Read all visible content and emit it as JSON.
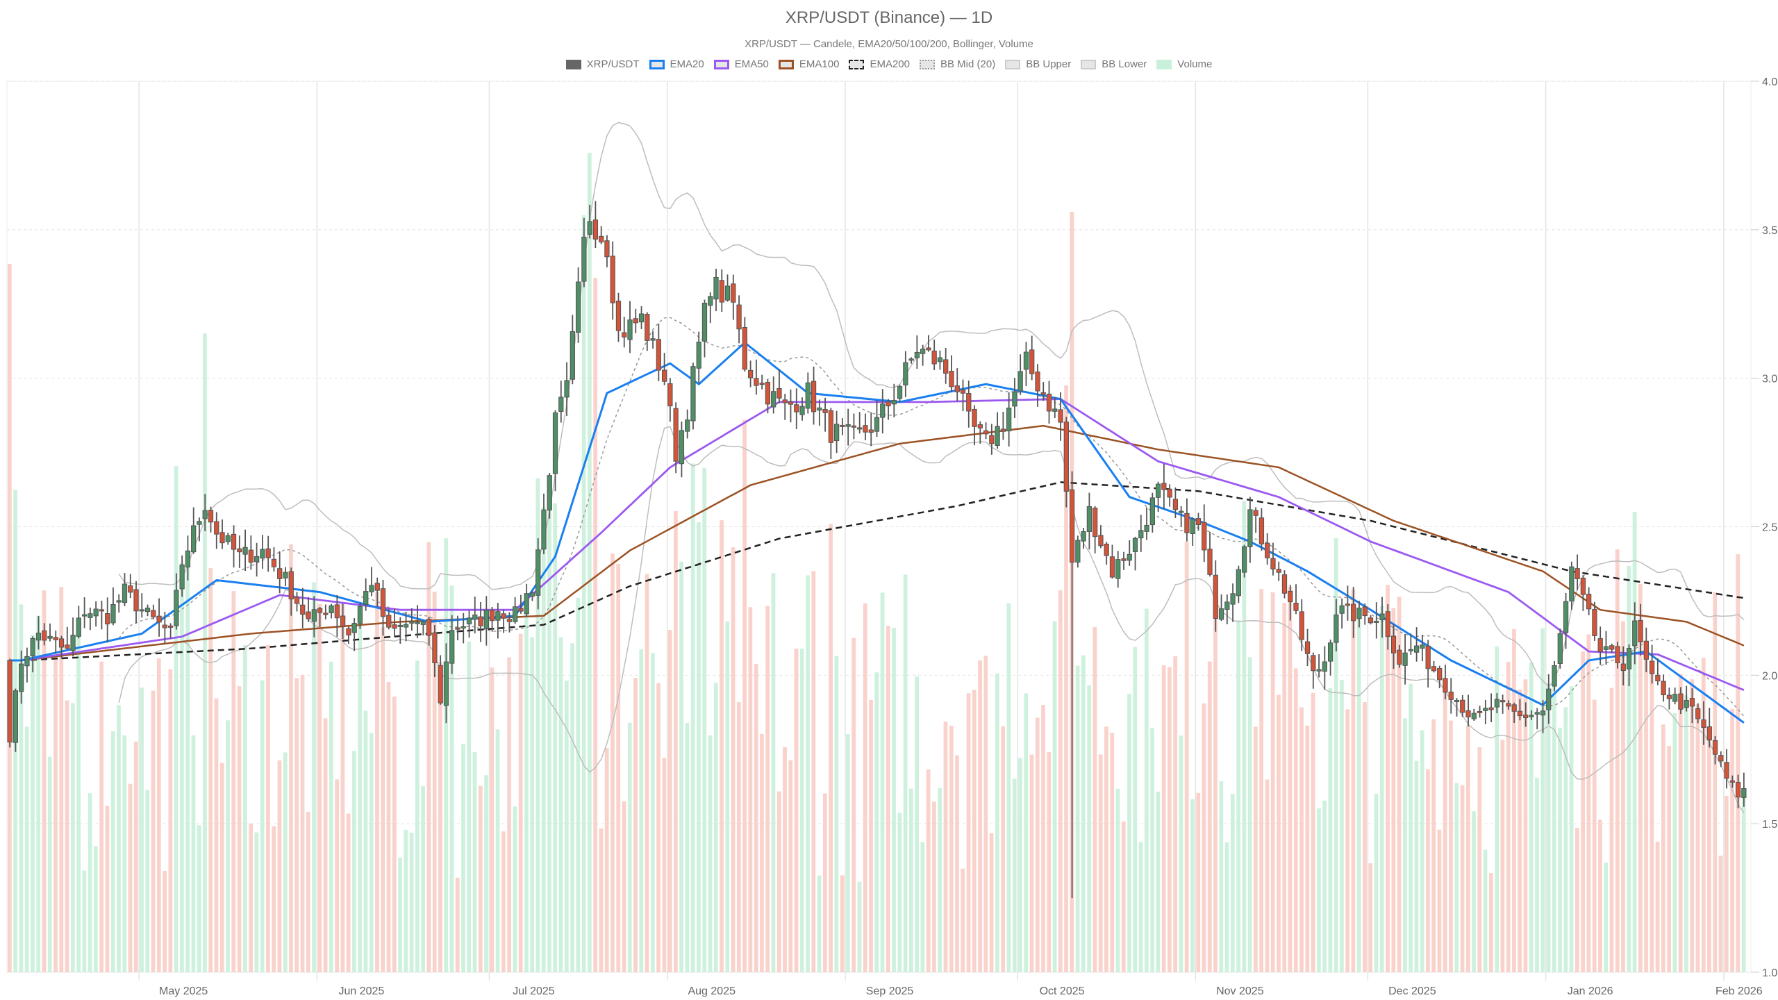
{
  "header": {
    "title": "XRP/USDT (Binance) — 1D",
    "subtitle": "XRP/USDT — Candele, EMA20/50/100/200, Bollinger, Volume"
  },
  "legend": [
    {
      "label": "XRP/USDT",
      "style": "solid",
      "fill": "#666666",
      "border": "#666666"
    },
    {
      "label": "EMA20",
      "style": "solid",
      "fill": "#e6e6e6",
      "border": "#1a7ff0"
    },
    {
      "label": "EMA50",
      "style": "solid",
      "fill": "#e6e6e6",
      "border": "#9b59f0"
    },
    {
      "label": "EMA100",
      "style": "solid",
      "fill": "#e6e6e6",
      "border": "#9c5224"
    },
    {
      "label": "EMA200",
      "style": "dashed",
      "fill": "#e6e6e6",
      "border": "#222222"
    },
    {
      "label": "BB Mid (20)",
      "style": "dotted",
      "fill": "#e6e6e6",
      "border": "#999999"
    },
    {
      "label": "BB Upper",
      "style": "solid",
      "fill": "#e6e6e6",
      "border": "#cccccc"
    },
    {
      "label": "BB Lower",
      "style": "solid",
      "fill": "#e6e6e6",
      "border": "#cccccc"
    },
    {
      "label": "Volume",
      "style": "solid",
      "fill": "#c9f0da",
      "border": "#c9f0da"
    }
  ],
  "colors": {
    "up": "#4e8f66",
    "down": "#d35439",
    "wick": "#555555",
    "vol_up": "#c9f0da",
    "vol_down": "#f9cdc6",
    "ema20": "#1a7ff0",
    "ema50": "#9b59f0",
    "ema100": "#9c5224",
    "ema200": "#222222",
    "bb": "#bdbdbd",
    "bb_mid": "#999999",
    "grid": "#e2e2e2"
  },
  "chart_data": {
    "type": "candlestick",
    "title": "XRP/USDT (Binance) — 1D",
    "subtitle": "XRP/USDT — Candele, EMA20/50/100/200, Bollinger, Volume",
    "xlabel": "",
    "ylabel": "",
    "ylim": [
      1.0,
      4.0
    ],
    "y_ticks": [
      "1.0",
      "1.5",
      "2.0",
      "2.5",
      "3.0",
      "3.5",
      "4.0"
    ],
    "y_axis_position": "right",
    "x_ticks": [
      "May 2025",
      "Jun 2025",
      "Jul 2025",
      "Aug 2025",
      "Sep 2025",
      "Oct 2025",
      "Nov 2025",
      "Dec 2025",
      "Jan 2026",
      "Feb 2026"
    ],
    "grid": true,
    "legend_position": "top",
    "series": [
      "XRP/USDT",
      "EMA20",
      "EMA50",
      "EMA100",
      "EMA200",
      "BB Mid (20)",
      "BB Upper",
      "BB Lower",
      "Volume"
    ],
    "close_path": [
      [
        "2025-04-08",
        1.8
      ],
      [
        "2025-04-10",
        2.05
      ],
      [
        "2025-04-13",
        2.14
      ],
      [
        "2025-04-18",
        2.08
      ],
      [
        "2025-04-21",
        2.22
      ],
      [
        "2025-04-25",
        2.2
      ],
      [
        "2025-04-28",
        2.28
      ],
      [
        "2025-05-02",
        2.2
      ],
      [
        "2025-05-06",
        2.14
      ],
      [
        "2025-05-08",
        2.38
      ],
      [
        "2025-05-12",
        2.58
      ],
      [
        "2025-05-14",
        2.48
      ],
      [
        "2025-05-18",
        2.4
      ],
      [
        "2025-05-22",
        2.42
      ],
      [
        "2025-05-26",
        2.32
      ],
      [
        "2025-05-30",
        2.18
      ],
      [
        "2025-06-03",
        2.24
      ],
      [
        "2025-06-06",
        2.14
      ],
      [
        "2025-06-10",
        2.32
      ],
      [
        "2025-06-13",
        2.14
      ],
      [
        "2025-06-17",
        2.18
      ],
      [
        "2025-06-20",
        2.14
      ],
      [
        "2025-06-22",
        1.92
      ],
      [
        "2025-06-24",
        2.16
      ],
      [
        "2025-06-28",
        2.18
      ],
      [
        "2025-07-02",
        2.22
      ],
      [
        "2025-07-05",
        2.2
      ],
      [
        "2025-07-08",
        2.3
      ],
      [
        "2025-07-10",
        2.55
      ],
      [
        "2025-07-12",
        2.85
      ],
      [
        "2025-07-14",
        2.96
      ],
      [
        "2025-07-17",
        3.45
      ],
      [
        "2025-07-18",
        3.55
      ],
      [
        "2025-07-21",
        3.45
      ],
      [
        "2025-07-23",
        3.15
      ],
      [
        "2025-07-27",
        3.2
      ],
      [
        "2025-07-31",
        3.0
      ],
      [
        "2025-08-02",
        2.75
      ],
      [
        "2025-08-04",
        2.9
      ],
      [
        "2025-08-08",
        3.32
      ],
      [
        "2025-08-12",
        3.25
      ],
      [
        "2025-08-14",
        3.05
      ],
      [
        "2025-08-18",
        2.95
      ],
      [
        "2025-08-21",
        2.9
      ],
      [
        "2025-08-25",
        2.95
      ],
      [
        "2025-08-29",
        2.82
      ],
      [
        "2025-09-02",
        2.8
      ],
      [
        "2025-09-06",
        2.85
      ],
      [
        "2025-09-10",
        2.98
      ],
      [
        "2025-09-13",
        3.1
      ],
      [
        "2025-09-17",
        3.05
      ],
      [
        "2025-09-20",
        2.97
      ],
      [
        "2025-09-22",
        2.85
      ],
      [
        "2025-09-25",
        2.78
      ],
      [
        "2025-09-28",
        2.85
      ],
      [
        "2025-10-02",
        3.05
      ],
      [
        "2025-10-05",
        2.95
      ],
      [
        "2025-10-08",
        2.85
      ],
      [
        "2025-10-10",
        2.38
      ],
      [
        "2025-10-13",
        2.55
      ],
      [
        "2025-10-17",
        2.35
      ],
      [
        "2025-10-21",
        2.45
      ],
      [
        "2025-10-25",
        2.62
      ],
      [
        "2025-10-29",
        2.52
      ],
      [
        "2025-11-01",
        2.5
      ],
      [
        "2025-11-04",
        2.22
      ],
      [
        "2025-11-07",
        2.3
      ],
      [
        "2025-11-10",
        2.55
      ],
      [
        "2025-11-13",
        2.42
      ],
      [
        "2025-11-17",
        2.25
      ],
      [
        "2025-11-21",
        2.0
      ],
      [
        "2025-11-23",
        2.05
      ],
      [
        "2025-11-25",
        2.22
      ],
      [
        "2025-11-29",
        2.2
      ],
      [
        "2025-12-03",
        2.2
      ],
      [
        "2025-12-06",
        2.05
      ],
      [
        "2025-12-09",
        2.1
      ],
      [
        "2025-12-12",
        2.02
      ],
      [
        "2025-12-16",
        1.92
      ],
      [
        "2025-12-19",
        1.85
      ],
      [
        "2025-12-23",
        1.9
      ],
      [
        "2025-12-27",
        1.86
      ],
      [
        "2025-12-31",
        1.88
      ],
      [
        "2026-01-02",
        2.02
      ],
      [
        "2026-01-05",
        2.35
      ],
      [
        "2026-01-07",
        2.25
      ],
      [
        "2026-01-10",
        2.08
      ],
      [
        "2026-01-14",
        2.04
      ],
      [
        "2026-01-16",
        2.16
      ],
      [
        "2026-01-19",
        1.98
      ],
      [
        "2026-01-23",
        1.92
      ],
      [
        "2026-01-26",
        1.88
      ],
      [
        "2026-01-29",
        1.78
      ],
      [
        "2026-02-01",
        1.65
      ],
      [
        "2026-02-03",
        1.6
      ],
      [
        "2026-02-04",
        1.61
      ]
    ],
    "indicators_end_values": {
      "EMA20": 1.84,
      "EMA50": 1.95,
      "EMA100": 2.1,
      "EMA200": 2.26,
      "BB Upper": 2.19,
      "BB Mid (20)": 1.89,
      "BB Lower": 1.56
    },
    "indicator_paths": {
      "EMA20": [
        [
          "2025-04-10",
          2.05
        ],
        [
          "2025-05-01",
          2.14
        ],
        [
          "2025-05-14",
          2.32
        ],
        [
          "2025-06-01",
          2.28
        ],
        [
          "2025-06-20",
          2.18
        ],
        [
          "2025-07-05",
          2.2
        ],
        [
          "2025-07-12",
          2.4
        ],
        [
          "2025-07-21",
          2.95
        ],
        [
          "2025-08-01",
          3.05
        ],
        [
          "2025-08-06",
          2.98
        ],
        [
          "2025-08-14",
          3.12
        ],
        [
          "2025-08-25",
          2.95
        ],
        [
          "2025-09-10",
          2.92
        ],
        [
          "2025-09-25",
          2.98
        ],
        [
          "2025-10-08",
          2.93
        ],
        [
          "2025-10-20",
          2.6
        ],
        [
          "2025-11-01",
          2.52
        ],
        [
          "2025-11-10",
          2.45
        ],
        [
          "2025-11-20",
          2.35
        ],
        [
          "2025-12-01",
          2.22
        ],
        [
          "2025-12-15",
          2.05
        ],
        [
          "2025-12-31",
          1.9
        ],
        [
          "2026-01-08",
          2.05
        ],
        [
          "2026-01-18",
          2.08
        ],
        [
          "2026-02-04",
          1.84
        ]
      ],
      "EMA50": [
        [
          "2025-04-10",
          2.05
        ],
        [
          "2025-05-08",
          2.13
        ],
        [
          "2025-05-25",
          2.27
        ],
        [
          "2025-06-15",
          2.22
        ],
        [
          "2025-07-05",
          2.22
        ],
        [
          "2025-07-20",
          2.48
        ],
        [
          "2025-08-01",
          2.7
        ],
        [
          "2025-08-20",
          2.92
        ],
        [
          "2025-09-15",
          2.92
        ],
        [
          "2025-10-08",
          2.93
        ],
        [
          "2025-10-25",
          2.72
        ],
        [
          "2025-11-15",
          2.6
        ],
        [
          "2025-12-01",
          2.45
        ],
        [
          "2025-12-25",
          2.28
        ],
        [
          "2026-01-08",
          2.08
        ],
        [
          "2026-01-20",
          2.07
        ],
        [
          "2026-02-04",
          1.95
        ]
      ],
      "EMA100": [
        [
          "2025-04-10",
          2.05
        ],
        [
          "2025-05-20",
          2.14
        ],
        [
          "2025-06-15",
          2.18
        ],
        [
          "2025-07-10",
          2.2
        ],
        [
          "2025-07-25",
          2.42
        ],
        [
          "2025-08-15",
          2.64
        ],
        [
          "2025-09-10",
          2.78
        ],
        [
          "2025-10-05",
          2.84
        ],
        [
          "2025-10-25",
          2.76
        ],
        [
          "2025-11-15",
          2.7
        ],
        [
          "2025-12-05",
          2.52
        ],
        [
          "2025-12-31",
          2.35
        ],
        [
          "2026-01-10",
          2.22
        ],
        [
          "2026-01-25",
          2.18
        ],
        [
          "2026-02-04",
          2.1
        ]
      ],
      "EMA200": [
        [
          "2025-04-10",
          2.05
        ],
        [
          "2025-05-20",
          2.09
        ],
        [
          "2025-06-20",
          2.14
        ],
        [
          "2025-07-10",
          2.17
        ],
        [
          "2025-07-25",
          2.3
        ],
        [
          "2025-08-20",
          2.46
        ],
        [
          "2025-09-20",
          2.57
        ],
        [
          "2025-10-08",
          2.65
        ],
        [
          "2025-11-01",
          2.62
        ],
        [
          "2025-12-01",
          2.52
        ],
        [
          "2026-01-05",
          2.35
        ],
        [
          "2026-02-04",
          2.26
        ]
      ]
    },
    "volume_note": "relative daily volume bars at bottom, green = up day, red = down day; peaks around 2025-07-18 and 2025-10-10"
  }
}
